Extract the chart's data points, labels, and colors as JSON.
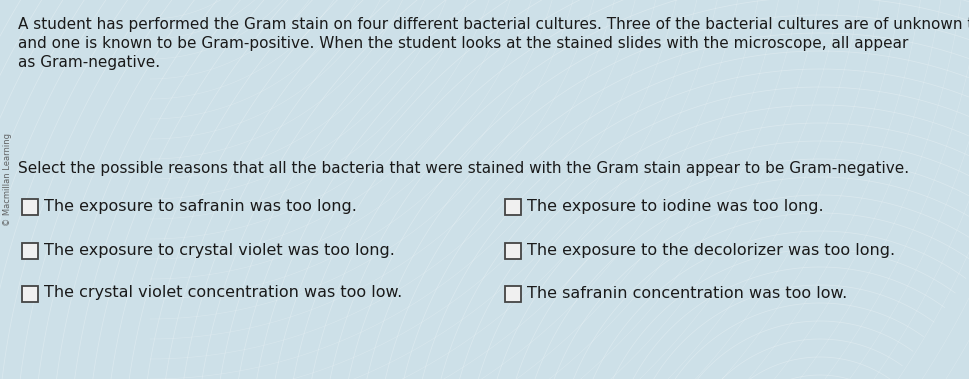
{
  "background_color": "#cde0e8",
  "watermark_text": "© Macmillan Learning",
  "paragraph_text_line1": "A student has performed the Gram stain on four different bacterial cultures. Three of the bacterial cultures are of unknown type",
  "paragraph_text_line2": "and one is known to be Gram-positive. When the student looks at the stained slides with the microscope, all appear",
  "paragraph_text_line3": "as Gram-negative.",
  "question_text": "Select the possible reasons that all the bacteria that were stained with the Gram stain appear to be Gram-negative.",
  "options_left": [
    "The exposure to safranin was too long.",
    "The exposure to crystal violet was too long.",
    "The crystal violet concentration was too low."
  ],
  "options_right": [
    "The exposure to iodine was too long.",
    "The exposure to the decolorizer was too long.",
    "The safranin concentration was too low."
  ],
  "text_color": "#1a1a1a",
  "checkbox_color": "#f0f0f0",
  "checkbox_edge_color": "#444444",
  "watermark_color": "#555555",
  "font_size_paragraph": 11.0,
  "font_size_question": 11.0,
  "font_size_options": 11.5,
  "font_size_watermark": 6.0
}
